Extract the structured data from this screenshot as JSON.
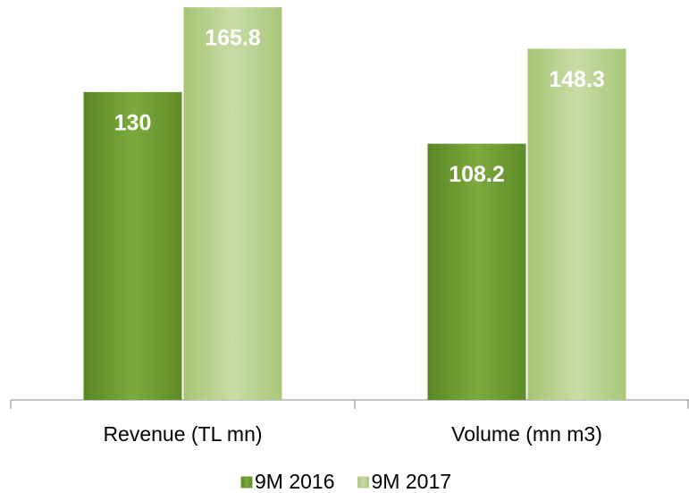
{
  "chart_data": {
    "type": "bar",
    "categories": [
      "Revenue (TL mn)",
      "Volume (mn m3)"
    ],
    "series": [
      {
        "name": "9M 2016",
        "color": "#6f9a33",
        "values": [
          130,
          108.2
        ]
      },
      {
        "name": "9M 2017",
        "color": "#b5d08a",
        "values": [
          165.8,
          148.3
        ]
      }
    ],
    "legend": "bottom"
  }
}
